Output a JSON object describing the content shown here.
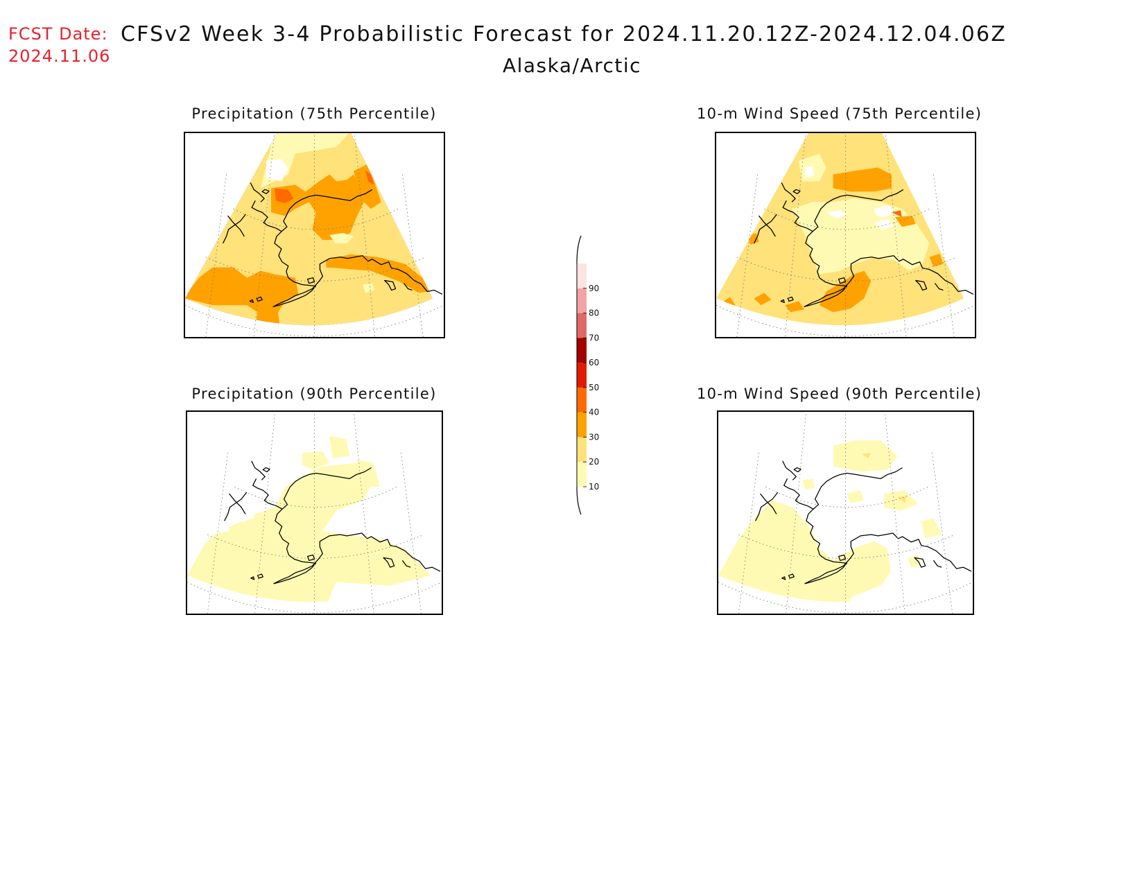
{
  "header": {
    "fcst_label": "FCST Date:",
    "fcst_date": "2024.11.06",
    "title": "CFSv2 Week 3-4 Probabilistic Forecast for 2024.11.20.12Z-2024.12.04.06Z",
    "region": "Alaska/Arctic"
  },
  "panels": [
    {
      "id": "precip75",
      "title": "Precipitation (75th Percentile)"
    },
    {
      "id": "wind75",
      "title": "10-m Wind Speed (75th Percentile)"
    },
    {
      "id": "precip90",
      "title": "Precipitation (90th Percentile)"
    },
    {
      "id": "wind90",
      "title": "10-m Wind Speed (90th Percentile)"
    }
  ],
  "colorbar": {
    "levels": [
      10,
      20,
      30,
      40,
      50,
      60,
      70,
      80,
      90
    ],
    "labels": [
      "10",
      "20",
      "30",
      "40",
      "50",
      "60",
      "70",
      "80",
      "90"
    ],
    "colors": [
      "#fffab3",
      "#ffe27a",
      "#ffa200",
      "#ff6a00",
      "#e01b00",
      "#a30000",
      "#e06868",
      "#f2a3a3",
      "#fde2e2"
    ]
  },
  "palette": {
    "p10_20": "#fffab3",
    "p20_30": "#ffe27a",
    "p30_40": "#ffa200",
    "p40_50": "#ff6a00",
    "coast": "#000000"
  }
}
